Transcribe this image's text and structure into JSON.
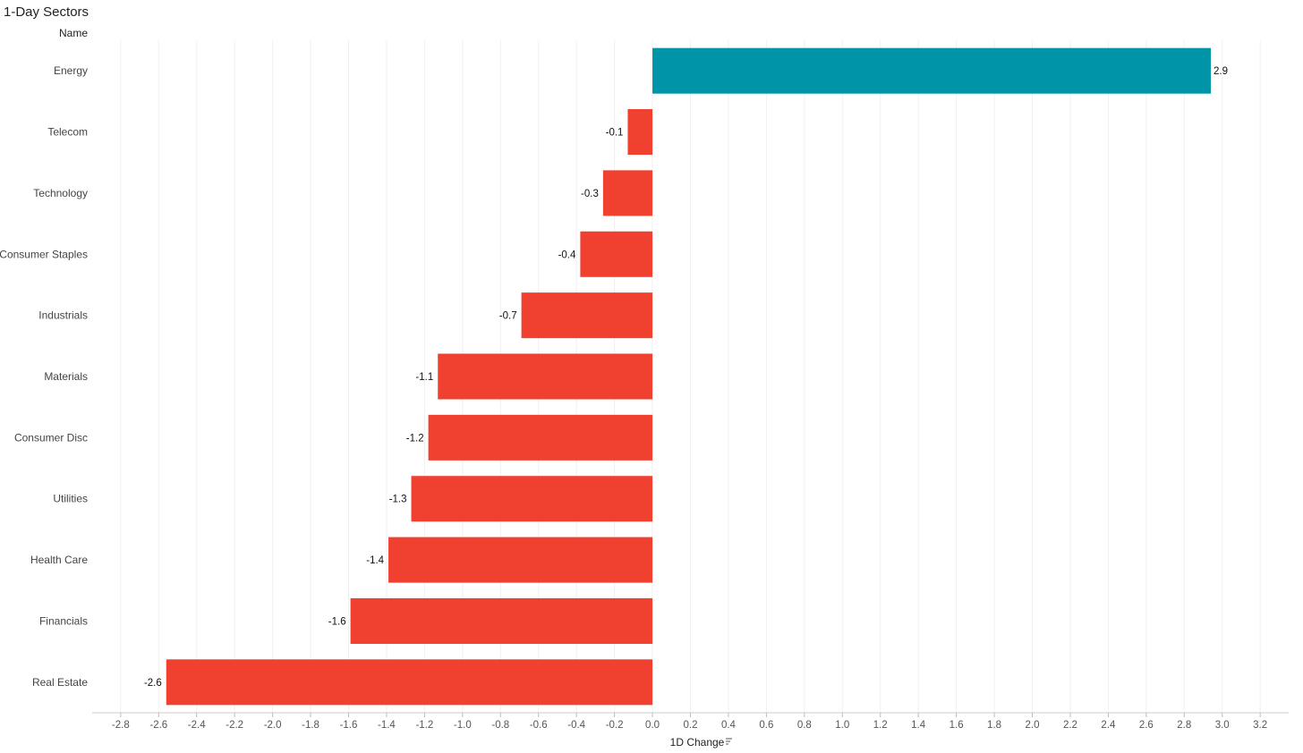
{
  "chart_data": {
    "type": "bar",
    "orientation": "horizontal",
    "title": "1-Day Sectors",
    "row_header": "Name",
    "xlabel": "1D Change",
    "categories": [
      "Energy",
      "Telecom",
      "Technology",
      "Consumer Staples",
      "Industrials",
      "Materials",
      "Consumer Disc",
      "Utilities",
      "Health Care",
      "Financials",
      "Real Estate"
    ],
    "values": [
      2.94,
      -0.13,
      -0.26,
      -0.38,
      -0.69,
      -1.13,
      -1.18,
      -1.27,
      -1.39,
      -1.59,
      -2.56
    ],
    "data_labels": [
      "2.9",
      "-0.1",
      "-0.3",
      "-0.4",
      "-0.7",
      "-1.1",
      "-1.2",
      "-1.3",
      "-1.4",
      "-1.6",
      "-2.6"
    ],
    "xlim": [
      -2.95,
      3.35
    ],
    "xticks": [
      -2.8,
      -2.6,
      -2.4,
      -2.2,
      -2.0,
      -1.8,
      -1.6,
      -1.4,
      -1.2,
      -1.0,
      -0.8,
      -0.6,
      -0.4,
      -0.2,
      0.0,
      0.2,
      0.4,
      0.6,
      0.8,
      1.0,
      1.2,
      1.4,
      1.6,
      1.8,
      2.0,
      2.2,
      2.4,
      2.6,
      2.8,
      3.0,
      3.2
    ],
    "colors": {
      "positive": "#0094a8",
      "negative": "#f04030"
    },
    "grid": true
  }
}
